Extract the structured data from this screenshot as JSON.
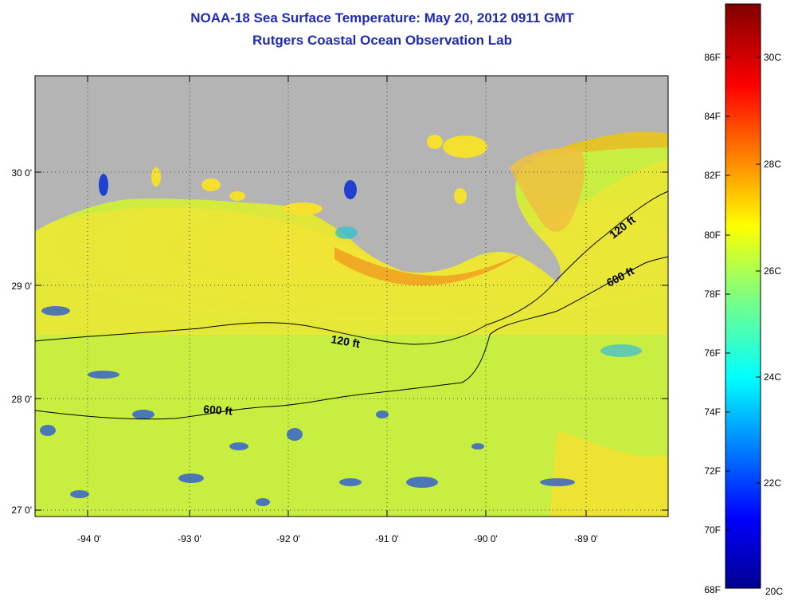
{
  "title": {
    "line1": "NOAA-18 Sea Surface Temperature:  May 20, 2012 0911 GMT",
    "line2": "Rutgers Coastal Ocean Observation Lab"
  },
  "colors": {
    "title": "#1f2bb5",
    "land": "#b4b4b4",
    "water_main": "#c8f040",
    "water_warm": "#f5e030",
    "water_coastal": "#f0a020",
    "water_cold": "#2050e0"
  },
  "axes": {
    "x_ticks": [
      "-94 0'",
      "-93 0'",
      "-92 0'",
      "-91 0'",
      "-90 0'",
      "-89 0'"
    ],
    "y_ticks": [
      "30 0'",
      "29 0'",
      "28 0'",
      "27 0'"
    ]
  },
  "contours": [
    {
      "label": "120 ft"
    },
    {
      "label": "600 ft"
    },
    {
      "label": "120 ft"
    },
    {
      "label": "600 ft"
    }
  ],
  "colorbar": {
    "fahrenheit": [
      "86F",
      "84F",
      "82F",
      "80F",
      "78F",
      "76F",
      "74F",
      "72F",
      "70F",
      "68F"
    ],
    "celsius": [
      "30C",
      "28C",
      "26C",
      "24C",
      "22C",
      "20C"
    ]
  }
}
